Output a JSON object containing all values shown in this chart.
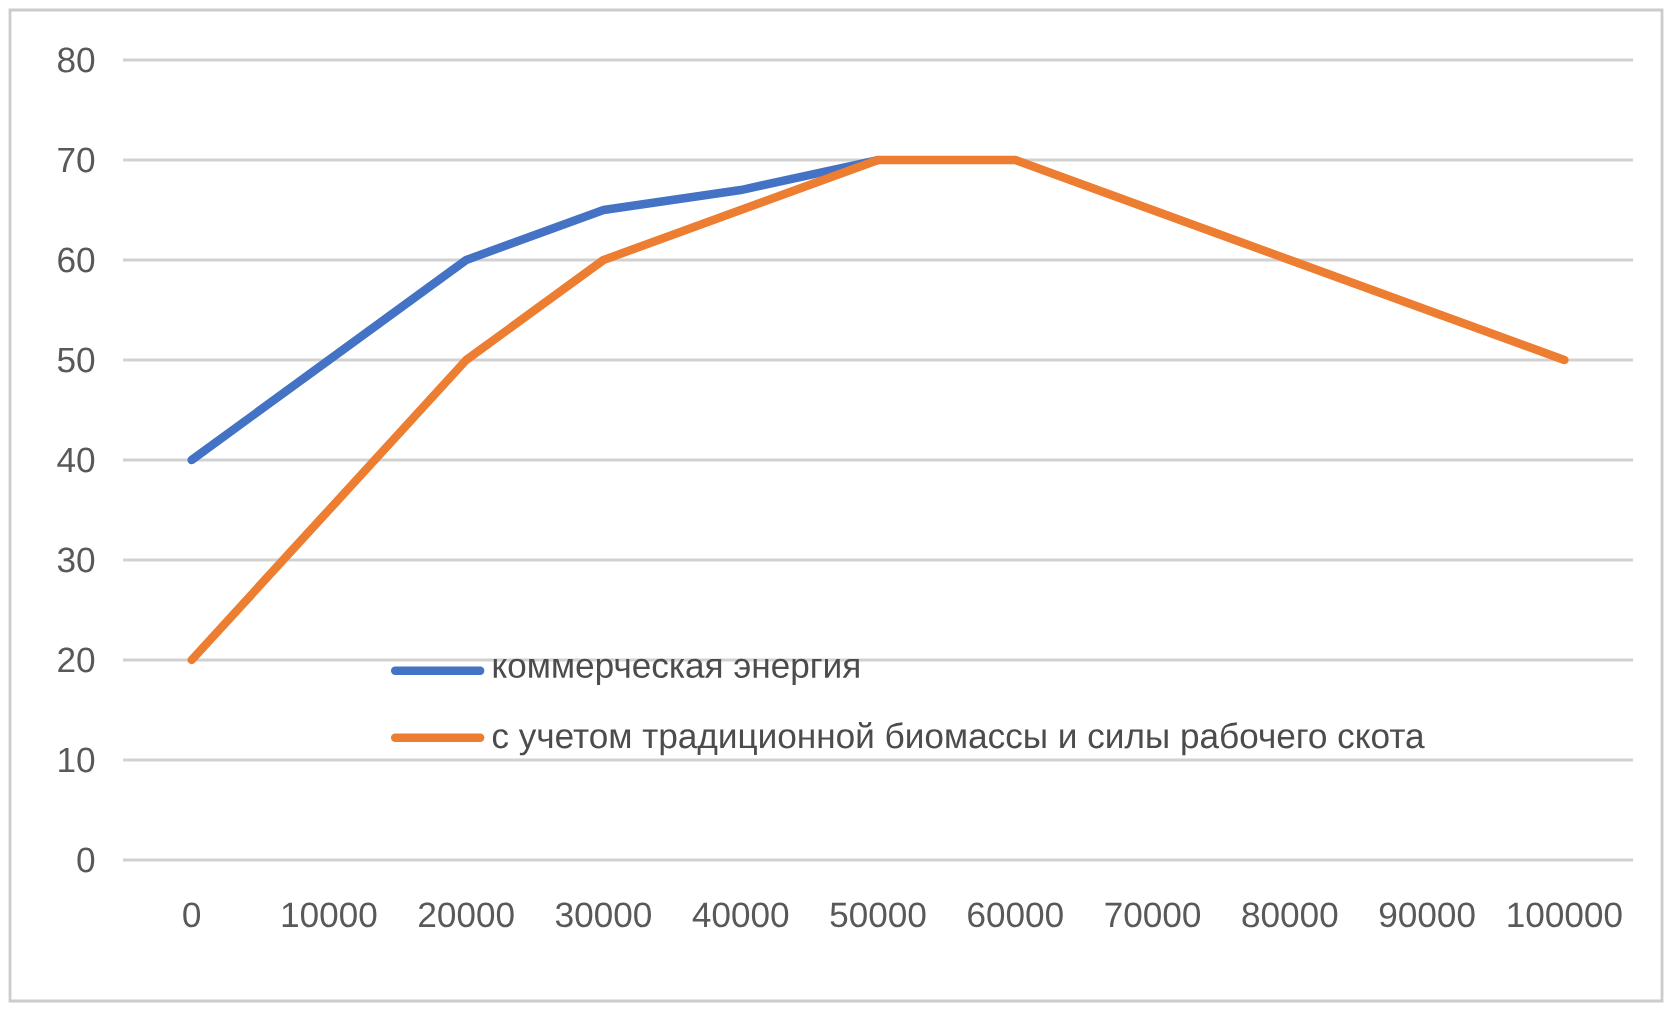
{
  "chart_data": {
    "type": "line",
    "categories": [
      "0",
      "10000",
      "20000",
      "30000",
      "40000",
      "50000",
      "60000",
      "70000",
      "80000",
      "90000",
      "100000"
    ],
    "series": [
      {
        "name": "коммерческая энергия",
        "color": "#4472c4",
        "values": [
          40,
          50,
          60,
          65,
          67,
          70,
          null,
          null,
          null,
          null,
          null
        ]
      },
      {
        "name": "с учетом традиционной биомассы и силы рабочего скота",
        "color": "#ed7d31",
        "values": [
          20,
          35,
          50,
          60,
          65,
          70,
          70,
          65,
          60,
          55,
          50
        ]
      }
    ],
    "ylim": [
      0,
      80
    ],
    "yticks": [
      0,
      10,
      20,
      30,
      40,
      50,
      60,
      70,
      80
    ],
    "grid": "y",
    "legend": "bottom",
    "marker": "none",
    "line_style": "solid"
  }
}
